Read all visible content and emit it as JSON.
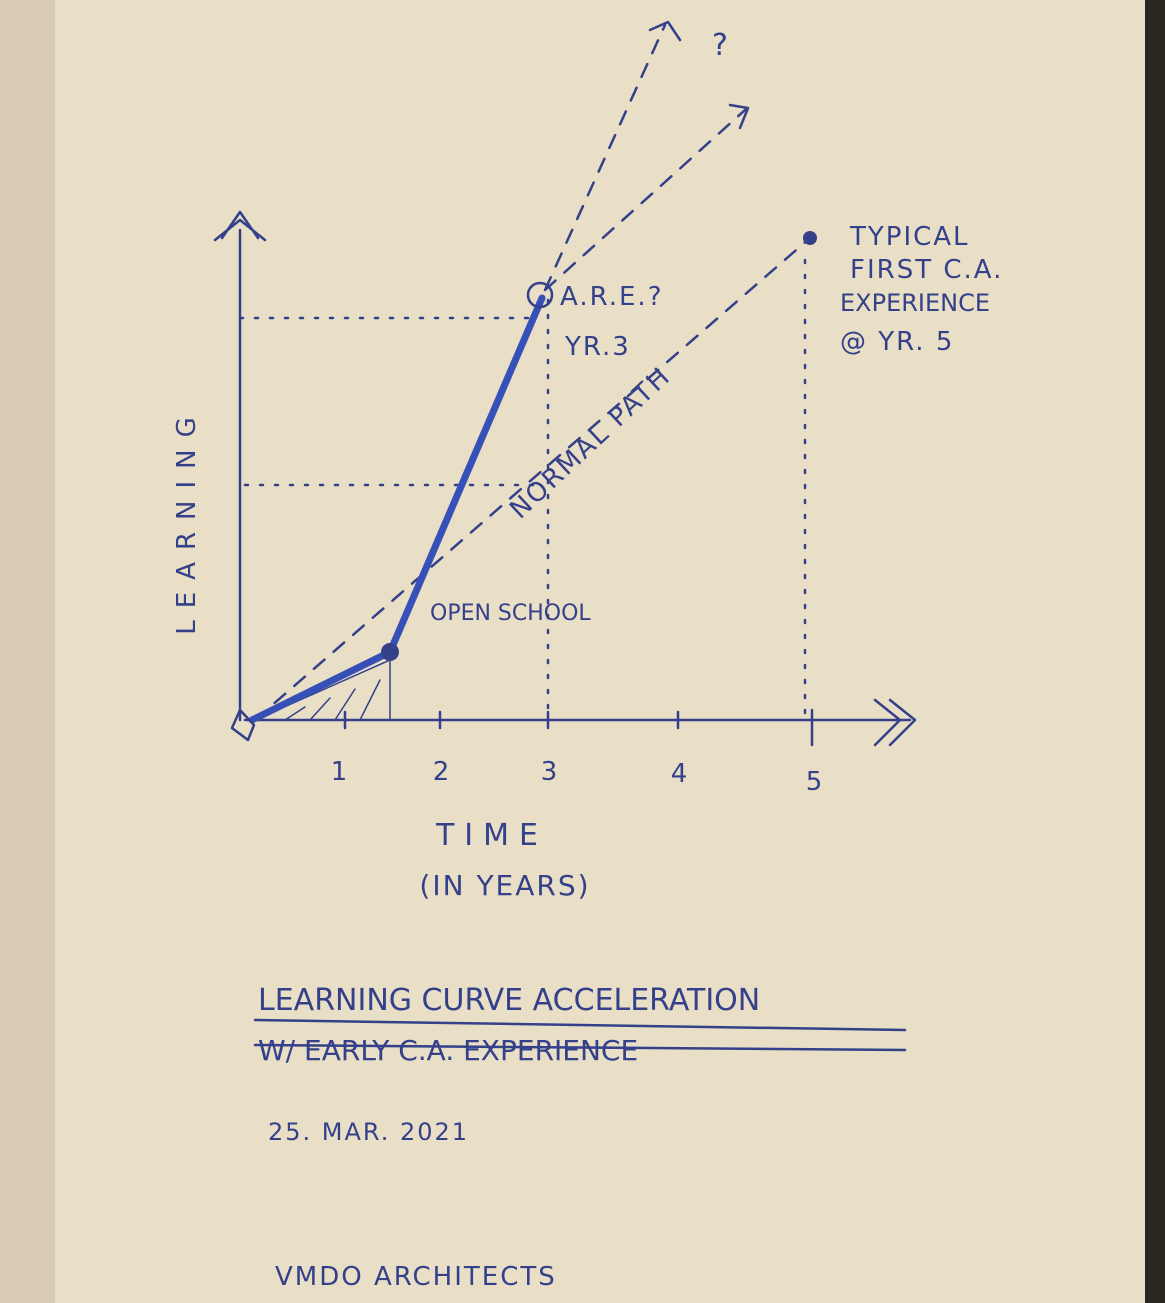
{
  "axes": {
    "y_label": "LEARNING",
    "x_label": "TIME",
    "x_unit": "(IN YEARS)",
    "x_ticks": [
      "1",
      "2",
      "3",
      "4",
      "5"
    ]
  },
  "annotations": {
    "question": "?",
    "are": "A.R.E.?",
    "are_year": "YR.3",
    "normal_path": "NORMAL PATH",
    "open_school": "OPEN SCHOOL",
    "typical": [
      "TYPICAL",
      "FIRST C.A.",
      "EXPERIENCE",
      "@ YR. 5"
    ]
  },
  "caption": {
    "title": [
      "LEARNING CURVE ACCELERATION",
      "W/ EARLY C.A. EXPERIENCE"
    ],
    "date": "25. MAR. 2021",
    "author": "VMDO ARCHITECTS"
  }
}
